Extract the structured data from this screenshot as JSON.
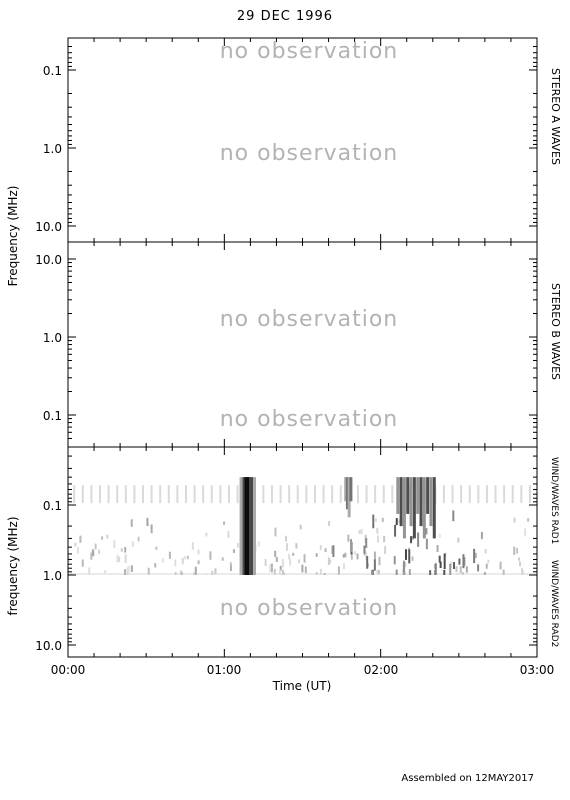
{
  "header": {
    "title": "29 DEC 1996"
  },
  "footer": {
    "text": "Assembled on 12MAY2017"
  },
  "chart_data": {
    "type": "heatmap",
    "title": "29 DEC 1996",
    "xlabel": "Time (UT)",
    "x_ticks": [
      "00:00",
      "01:00",
      "02:00",
      "03:00"
    ],
    "xlim": [
      "00:00",
      "03:00"
    ],
    "panels": [
      {
        "name": "STEREO A WAVES",
        "ylabel": "Frequency (MHz)",
        "y_scale": "log",
        "y_ticks": [
          "0.1",
          "1.0",
          "10.0"
        ],
        "y_direction": "frequency increasing downward",
        "annotations": [
          "no observation",
          "no observation"
        ]
      },
      {
        "name": "STEREO B WAVES",
        "y_scale": "log",
        "y_ticks": [
          "10.0",
          "1.0",
          "0.1"
        ],
        "y_direction": "frequency increasing upward",
        "annotations": [
          "no observation",
          "no observation"
        ]
      },
      {
        "name": "WIND/WAVES RAD1",
        "name2": "WIND/WAVES RAD2",
        "ylabel": "frequency (MHz)",
        "y_scale": "log",
        "y_ticks": [
          "0.1",
          "1.0",
          "10.0"
        ],
        "y_direction": "frequency increasing downward",
        "annotations": [
          "no observation"
        ],
        "bursts": [
          {
            "time": "01:07",
            "time_end": "01:11",
            "freq_range_mhz": [
              0.04,
              1.0
            ],
            "intensity": 0.95
          },
          {
            "time": "01:46",
            "freq_range_mhz": [
              0.04,
              0.15
            ],
            "intensity": 0.55
          },
          {
            "time": "02:06",
            "time_end": "02:20",
            "freq_range_mhz": [
              0.04,
              0.3
            ],
            "intensity": 0.7
          }
        ]
      }
    ]
  }
}
